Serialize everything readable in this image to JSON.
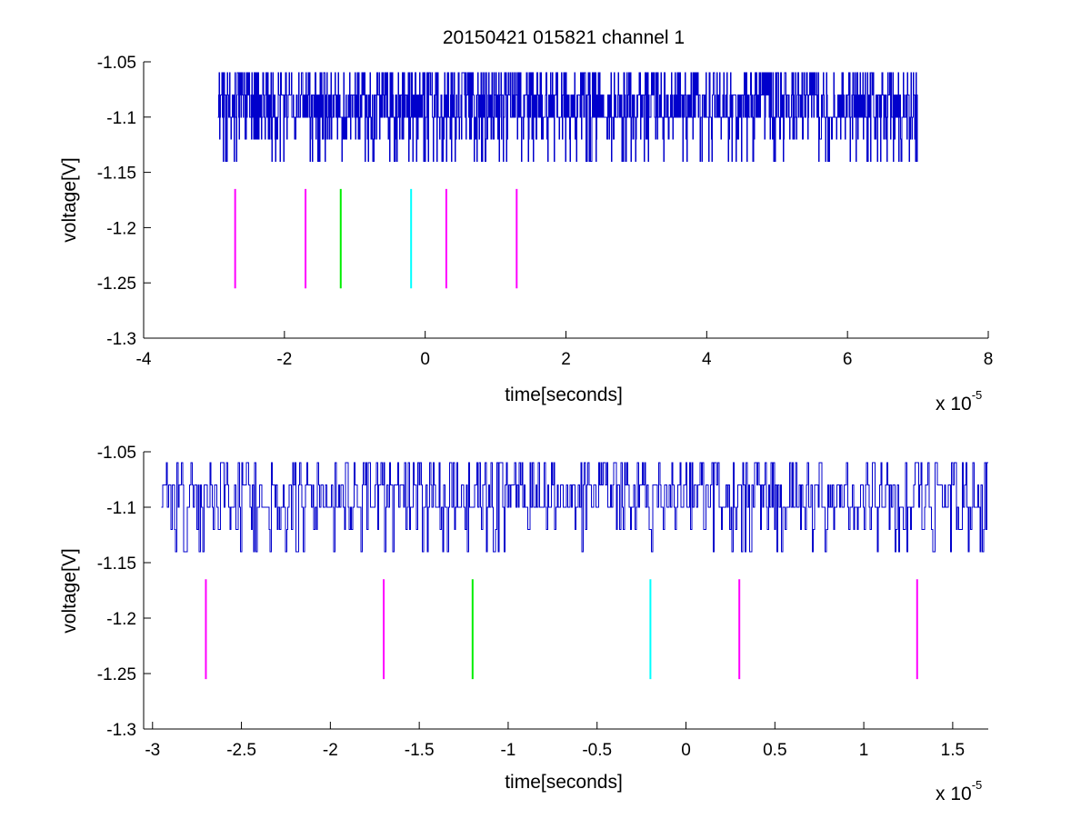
{
  "title": "20150421 015821 channel 1",
  "colors": {
    "signal": "#0000cc",
    "magenta": "#ff00ff",
    "green": "#00ee00",
    "cyan": "#00ffff",
    "axis": "#000000",
    "background": "#ffffff"
  },
  "chart_data": [
    {
      "type": "line",
      "xlabel": "time[seconds]",
      "ylabel": "voltage[V]",
      "x_multiplier_base": "x 10",
      "x_multiplier_exp": "-5",
      "xlim": [
        -4,
        8
      ],
      "ylim": [
        -1.3,
        -1.05
      ],
      "xticks": [
        -4,
        -2,
        0,
        2,
        4,
        6,
        8
      ],
      "xtick_labels": [
        "-4",
        "-2",
        "0",
        "2",
        "4",
        "6",
        "8"
      ],
      "yticks": [
        -1.05,
        -1.1,
        -1.15,
        -1.2,
        -1.25,
        -1.3
      ],
      "ytick_labels": [
        "-1.05",
        "-1.1",
        "-1.15",
        "-1.2",
        "-1.25",
        "-1.3"
      ],
      "grid": false,
      "signal": {
        "x_range": [
          -2.95,
          7.0
        ],
        "levels": [
          -1.06,
          -1.08,
          -1.1,
          -1.12,
          -1.14
        ],
        "baseline": -1.1,
        "min": -1.14,
        "max": -1.06
      },
      "markers": [
        {
          "x": -2.7,
          "y_range": [
            -1.255,
            -1.165
          ],
          "color": "magenta"
        },
        {
          "x": -1.7,
          "y_range": [
            -1.255,
            -1.165
          ],
          "color": "magenta"
        },
        {
          "x": -1.2,
          "y_range": [
            -1.255,
            -1.165
          ],
          "color": "green"
        },
        {
          "x": -0.2,
          "y_range": [
            -1.255,
            -1.165
          ],
          "color": "cyan"
        },
        {
          "x": 0.3,
          "y_range": [
            -1.255,
            -1.165
          ],
          "color": "magenta"
        },
        {
          "x": 1.3,
          "y_range": [
            -1.255,
            -1.165
          ],
          "color": "magenta"
        }
      ]
    },
    {
      "type": "line",
      "xlabel": "time[seconds]",
      "ylabel": "voltage[V]",
      "x_multiplier_base": "x 10",
      "x_multiplier_exp": "-5",
      "xlim": [
        -3.05,
        1.7
      ],
      "ylim": [
        -1.3,
        -1.05
      ],
      "xticks": [
        -3,
        -2.5,
        -2,
        -1.5,
        -1,
        -0.5,
        0,
        0.5,
        1,
        1.5
      ],
      "xtick_labels": [
        "-3",
        "-2.5",
        "-2",
        "-1.5",
        "-1",
        "-0.5",
        "0",
        "0.5",
        "1",
        "1.5"
      ],
      "yticks": [
        -1.05,
        -1.1,
        -1.15,
        -1.2,
        -1.25,
        -1.3
      ],
      "ytick_labels": [
        "-1.05",
        "-1.1",
        "-1.15",
        "-1.2",
        "-1.25",
        "-1.3"
      ],
      "grid": false,
      "signal": {
        "x_range": [
          -2.95,
          1.7
        ],
        "levels": [
          -1.06,
          -1.08,
          -1.1,
          -1.12,
          -1.14
        ],
        "baseline": -1.1,
        "min": -1.14,
        "max": -1.06
      },
      "markers": [
        {
          "x": -2.7,
          "y_range": [
            -1.255,
            -1.165
          ],
          "color": "magenta"
        },
        {
          "x": -1.7,
          "y_range": [
            -1.255,
            -1.165
          ],
          "color": "magenta"
        },
        {
          "x": -1.2,
          "y_range": [
            -1.255,
            -1.165
          ],
          "color": "green"
        },
        {
          "x": -0.2,
          "y_range": [
            -1.255,
            -1.165
          ],
          "color": "cyan"
        },
        {
          "x": 0.3,
          "y_range": [
            -1.255,
            -1.165
          ],
          "color": "magenta"
        },
        {
          "x": 1.3,
          "y_range": [
            -1.255,
            -1.165
          ],
          "color": "magenta"
        }
      ]
    }
  ]
}
